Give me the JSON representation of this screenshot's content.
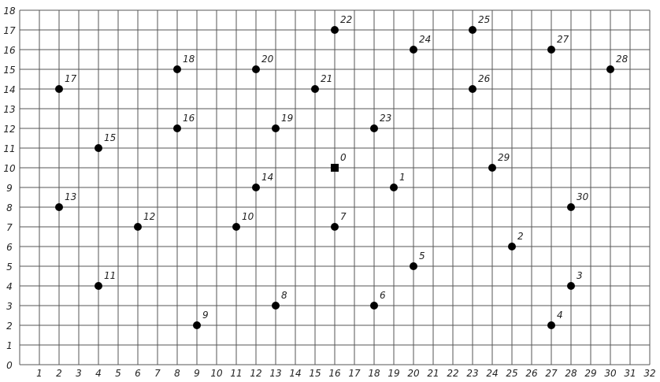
{
  "chart_data": {
    "type": "scatter",
    "title": "",
    "xlabel": "",
    "ylabel": "",
    "xlim": [
      0,
      32
    ],
    "ylim": [
      0,
      18
    ],
    "grid": true,
    "x_ticks": [
      1,
      2,
      3,
      4,
      5,
      6,
      7,
      8,
      9,
      10,
      11,
      12,
      13,
      14,
      15,
      16,
      17,
      18,
      19,
      20,
      21,
      22,
      23,
      24,
      25,
      26,
      27,
      28,
      29,
      30,
      31,
      32
    ],
    "y_ticks": [
      0,
      1,
      2,
      3,
      4,
      5,
      6,
      7,
      8,
      9,
      10,
      11,
      12,
      13,
      14,
      15,
      16,
      17,
      18
    ],
    "marker_color": "#000000",
    "grid_color": "#555555",
    "points": [
      {
        "label": "0",
        "x": 16,
        "y": 10,
        "marker": "square"
      },
      {
        "label": "1",
        "x": 19,
        "y": 9,
        "marker": "circle"
      },
      {
        "label": "2",
        "x": 25,
        "y": 6,
        "marker": "circle"
      },
      {
        "label": "3",
        "x": 28,
        "y": 4,
        "marker": "circle"
      },
      {
        "label": "4",
        "x": 27,
        "y": 2,
        "marker": "circle"
      },
      {
        "label": "5",
        "x": 20,
        "y": 5,
        "marker": "circle"
      },
      {
        "label": "6",
        "x": 18,
        "y": 3,
        "marker": "circle"
      },
      {
        "label": "7",
        "x": 16,
        "y": 7,
        "marker": "circle"
      },
      {
        "label": "8",
        "x": 13,
        "y": 3,
        "marker": "circle"
      },
      {
        "label": "9",
        "x": 9,
        "y": 2,
        "marker": "circle"
      },
      {
        "label": "10",
        "x": 11,
        "y": 7,
        "marker": "circle"
      },
      {
        "label": "11",
        "x": 4,
        "y": 4,
        "marker": "circle"
      },
      {
        "label": "12",
        "x": 6,
        "y": 7,
        "marker": "circle"
      },
      {
        "label": "13",
        "x": 2,
        "y": 8,
        "marker": "circle"
      },
      {
        "label": "14",
        "x": 12,
        "y": 9,
        "marker": "circle"
      },
      {
        "label": "15",
        "x": 4,
        "y": 11,
        "marker": "circle"
      },
      {
        "label": "16",
        "x": 8,
        "y": 12,
        "marker": "circle"
      },
      {
        "label": "17",
        "x": 2,
        "y": 14,
        "marker": "circle"
      },
      {
        "label": "18",
        "x": 8,
        "y": 15,
        "marker": "circle"
      },
      {
        "label": "19",
        "x": 13,
        "y": 12,
        "marker": "circle"
      },
      {
        "label": "20",
        "x": 12,
        "y": 15,
        "marker": "circle"
      },
      {
        "label": "21",
        "x": 15,
        "y": 14,
        "marker": "circle"
      },
      {
        "label": "22",
        "x": 16,
        "y": 17,
        "marker": "circle"
      },
      {
        "label": "23",
        "x": 18,
        "y": 12,
        "marker": "circle"
      },
      {
        "label": "24",
        "x": 20,
        "y": 16,
        "marker": "circle"
      },
      {
        "label": "25",
        "x": 23,
        "y": 17,
        "marker": "circle"
      },
      {
        "label": "26",
        "x": 23,
        "y": 14,
        "marker": "circle"
      },
      {
        "label": "27",
        "x": 27,
        "y": 16,
        "marker": "circle"
      },
      {
        "label": "28",
        "x": 30,
        "y": 15,
        "marker": "circle"
      },
      {
        "label": "29",
        "x": 24,
        "y": 10,
        "marker": "circle"
      },
      {
        "label": "30",
        "x": 28,
        "y": 8,
        "marker": "circle"
      }
    ]
  }
}
